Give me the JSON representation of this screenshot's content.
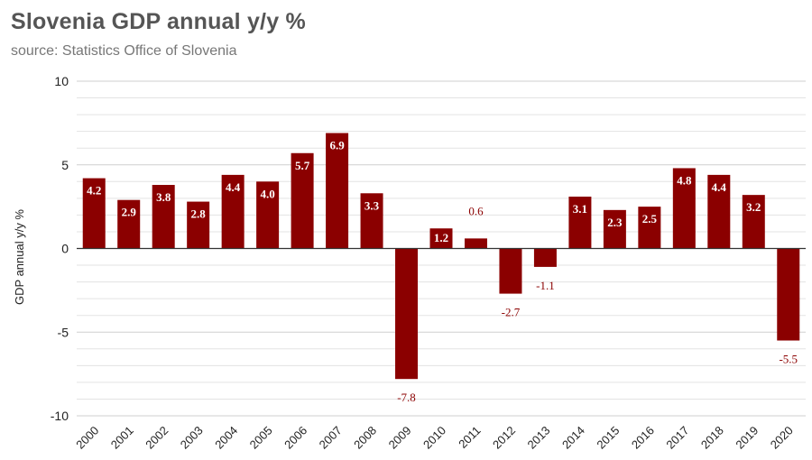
{
  "chart_data": {
    "type": "bar",
    "title": "Slovenia GDP annual y/y %",
    "subtitle": "source: Statistics Office of Slovenia",
    "xlabel": "",
    "ylabel": "GDP annual y/y %",
    "ylim": [
      -10,
      10
    ],
    "yticks": [
      10,
      5,
      0,
      -5,
      -10
    ],
    "bar_color": "#8b0000",
    "categories": [
      "2000",
      "2001",
      "2002",
      "2003",
      "2004",
      "2005",
      "2006",
      "2007",
      "2008",
      "2009",
      "2010",
      "2011",
      "2012",
      "2013",
      "2014",
      "2015",
      "2016",
      "2017",
      "2018",
      "2019",
      "2020"
    ],
    "values": [
      4.2,
      2.9,
      3.8,
      2.8,
      4.4,
      4.0,
      5.7,
      6.9,
      3.3,
      -7.8,
      1.2,
      0.6,
      -2.7,
      -1.1,
      3.1,
      2.3,
      2.5,
      4.8,
      4.4,
      3.2,
      -5.5
    ],
    "value_labels": [
      "4.2",
      "2.9",
      "3.8",
      "2.8",
      "4.4",
      "4.0",
      "5.7",
      "6.9",
      "3.3",
      "-7.8",
      "1.2",
      "0.6",
      "-2.7",
      "-1.1",
      "3.1",
      "2.3",
      "2.5",
      "4.8",
      "4.4",
      "3.2",
      "-5.5"
    ]
  }
}
